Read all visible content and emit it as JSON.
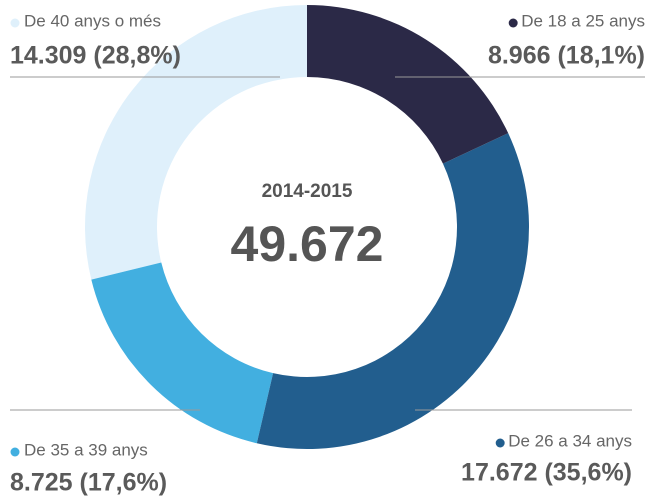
{
  "chart_data": {
    "type": "donut",
    "center": {
      "title": "2014-2015",
      "label": "49.672"
    },
    "categories": [
      "De 18 a 25 anys",
      "De 26 a 34 anys",
      "De 35 a 39 anys",
      "De 40 anys o més"
    ],
    "values": [
      8966,
      17672,
      8725,
      14309
    ],
    "value_labels": [
      "8.966 (18,1%)",
      "17.672 (35,6%)",
      "8.725 (17,6%)",
      "14.309 (28,8%)"
    ],
    "colors": [
      "#2b2947",
      "#225e8e",
      "#42afe0",
      "#dff0fb"
    ]
  }
}
